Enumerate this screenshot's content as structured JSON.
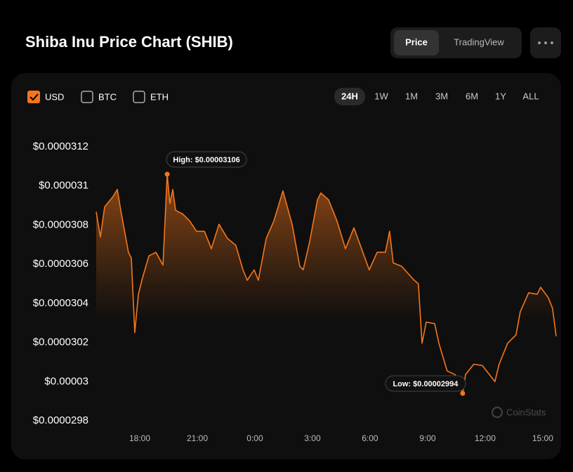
{
  "header": {
    "title": "Shiba Inu Price Chart (SHIB)",
    "tabs": [
      "Price",
      "TradingView"
    ]
  },
  "currencies": [
    "USD",
    "BTC",
    "ETH"
  ],
  "ranges": [
    "24H",
    "1W",
    "1M",
    "3M",
    "6M",
    "1Y",
    "ALL"
  ],
  "watermark": "CoinStats",
  "chart_data": {
    "type": "line",
    "x": [
      -8.27,
      -8.05,
      -7.83,
      -7.39,
      -7.17,
      -6.99,
      -6.59,
      -6.44,
      -6.26,
      -6.07,
      -5.89,
      -5.52,
      -5.16,
      -4.79,
      -4.57,
      -4.43,
      -4.28,
      -4.13,
      -3.77,
      -3.4,
      -3.04,
      -2.63,
      -2.27,
      -1.87,
      -1.43,
      -0.99,
      -0.62,
      -0.4,
      -0.04,
      0.18,
      0.59,
      0.99,
      1.46,
      1.94,
      2.34,
      2.52,
      2.85,
      3.26,
      3.44,
      3.84,
      4.28,
      4.72,
      5.16,
      5.56,
      5.96,
      6.37,
      6.8,
      7.02,
      7.21,
      7.65,
      8.3,
      8.52,
      8.71,
      8.93,
      9.37,
      9.59,
      10.02,
      10.43,
      10.83,
      10.98,
      11.41,
      11.85,
      12.51,
      12.73,
      13.17,
      13.61,
      13.83,
      14.27,
      14.71,
      14.89,
      15.29,
      15.51,
      15.7
    ],
    "series": [
      {
        "name": "USD",
        "color": "#f5761a",
        "values": [
          3.0868e-05,
          3.0739e-05,
          3.0893e-05,
          3.0946e-05,
          3.0982e-05,
          3.0875e-05,
          3.0661e-05,
          3.0632e-05,
          3.025e-05,
          3.0446e-05,
          3.0518e-05,
          3.0643e-05,
          3.0661e-05,
          3.0596e-05,
          3.106e-05,
          3.0911e-05,
          3.0982e-05,
          3.0875e-05,
          3.0857e-05,
          3.0821e-05,
          3.0768e-05,
          3.0768e-05,
          3.0679e-05,
          3.0804e-05,
          3.0732e-05,
          3.0696e-05,
          3.0571e-05,
          3.0518e-05,
          3.0571e-05,
          3.0518e-05,
          3.0732e-05,
          3.0821e-05,
          3.0975e-05,
          3.0804e-05,
          3.0589e-05,
          3.0571e-05,
          3.0714e-05,
          3.0929e-05,
          3.0964e-05,
          3.0929e-05,
          3.0821e-05,
          3.0679e-05,
          3.0786e-05,
          3.0679e-05,
          3.0571e-05,
          3.0661e-05,
          3.0661e-05,
          3.0768e-05,
          3.0607e-05,
          3.0589e-05,
          3.0518e-05,
          3.05e-05,
          3.0196e-05,
          3.0304e-05,
          3.0296e-05,
          3.0196e-05,
          3.0054e-05,
          3.0036e-05,
          2.994e-05,
          3.0036e-05,
          3.0089e-05,
          3.0082e-05,
          3e-05,
          3.0089e-05,
          3.0196e-05,
          3.0239e-05,
          3.0357e-05,
          3.0454e-05,
          3.0446e-05,
          3.0482e-05,
          3.0429e-05,
          3.0375e-05,
          3.0232e-05
        ]
      }
    ],
    "annotations": [
      {
        "text": "High: $0.00003106",
        "x": -4.57,
        "y": 3.106e-05
      },
      {
        "text": "Low: $0.00002994",
        "x": 10.83,
        "y": 2.994e-05
      }
    ],
    "xlim": [
      -8.27,
      15.7
    ],
    "xticks": [
      {
        "value": -6,
        "label": "18:00"
      },
      {
        "value": -3,
        "label": "21:00"
      },
      {
        "value": 0,
        "label": "0:00"
      },
      {
        "value": 3,
        "label": "3:00"
      },
      {
        "value": 6,
        "label": "6:00"
      },
      {
        "value": 9,
        "label": "9:00"
      },
      {
        "value": 12,
        "label": "12:00"
      },
      {
        "value": 15,
        "label": "15:00"
      }
    ],
    "ylim": [
      2.98e-05,
      3.12e-05
    ],
    "yticks": [
      {
        "value": 2.98e-05,
        "label": "$0.0000298"
      },
      {
        "value": 3e-05,
        "label": "$0.00003"
      },
      {
        "value": 3.02e-05,
        "label": "$0.0000302"
      },
      {
        "value": 3.04e-05,
        "label": "$0.0000304"
      },
      {
        "value": 3.06e-05,
        "label": "$0.0000306"
      },
      {
        "value": 3.08e-05,
        "label": "$0.0000308"
      },
      {
        "value": 3.1e-05,
        "label": "$0.000031"
      },
      {
        "value": 3.12e-05,
        "label": "$0.0000312"
      }
    ],
    "grid": false
  }
}
